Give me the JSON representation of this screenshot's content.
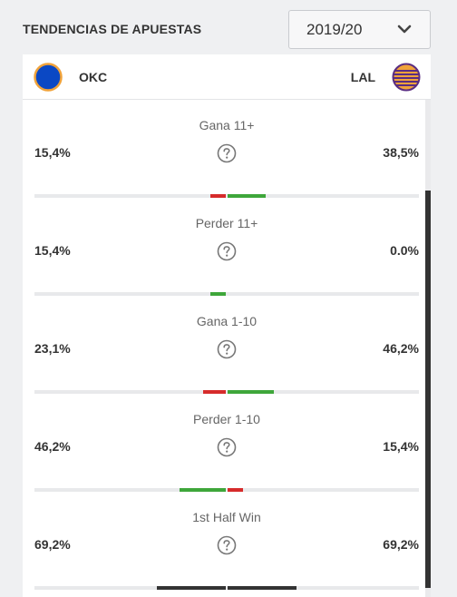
{
  "header": {
    "title": "TENDENCIAS DE APUESTAS",
    "season_selected": "2019/20"
  },
  "teams": {
    "home": {
      "abbr": "OKC",
      "color": "#0b48c4"
    },
    "away": {
      "abbr": "LAL",
      "color": "#f1a33a"
    }
  },
  "colors": {
    "lose": "#d62b2b",
    "win": "#3ea63a",
    "neutral": "#333333"
  },
  "trends": [
    {
      "label": "Gana 11+",
      "left_pct": "15,4%",
      "right_pct": "38,5%",
      "left_value": 15.4,
      "right_value": 38.5
    },
    {
      "label": "Perder 11+",
      "left_pct": "15,4%",
      "right_pct": "0.0%",
      "left_value": 15.4,
      "right_value": 0.0
    },
    {
      "label": "Gana 1-10",
      "left_pct": "23,1%",
      "right_pct": "46,2%",
      "left_value": 23.1,
      "right_value": 46.2
    },
    {
      "label": "Perder 1-10",
      "left_pct": "46,2%",
      "right_pct": "15,4%",
      "left_value": 46.2,
      "right_value": 15.4
    },
    {
      "label": "1st Half Win",
      "left_pct": "69,2%",
      "right_pct": "69,2%",
      "left_value": 69.2,
      "right_value": 69.2
    }
  ]
}
